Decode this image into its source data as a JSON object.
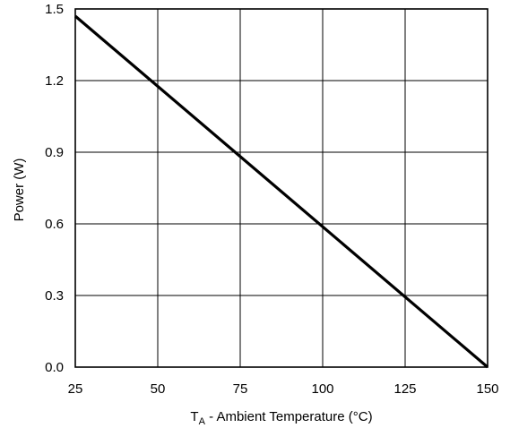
{
  "chart_data": {
    "type": "line",
    "title": "",
    "xlabel": {
      "main": "T",
      "subscript": "A",
      "rest": " - Ambient Temperature (°C)"
    },
    "ylabel": "Power (W)",
    "xlim": [
      25,
      150
    ],
    "ylim": [
      0,
      1.5
    ],
    "x_ticks": [
      "25",
      "50",
      "75",
      "100",
      "125",
      "150"
    ],
    "y_ticks": [
      "0.0",
      "0.3",
      "0.6",
      "0.9",
      "1.2",
      "1.5"
    ],
    "grid": true,
    "series": [
      {
        "x": [
          25,
          150
        ],
        "y": [
          1.47,
          0.0
        ],
        "color": "#000000"
      }
    ]
  }
}
